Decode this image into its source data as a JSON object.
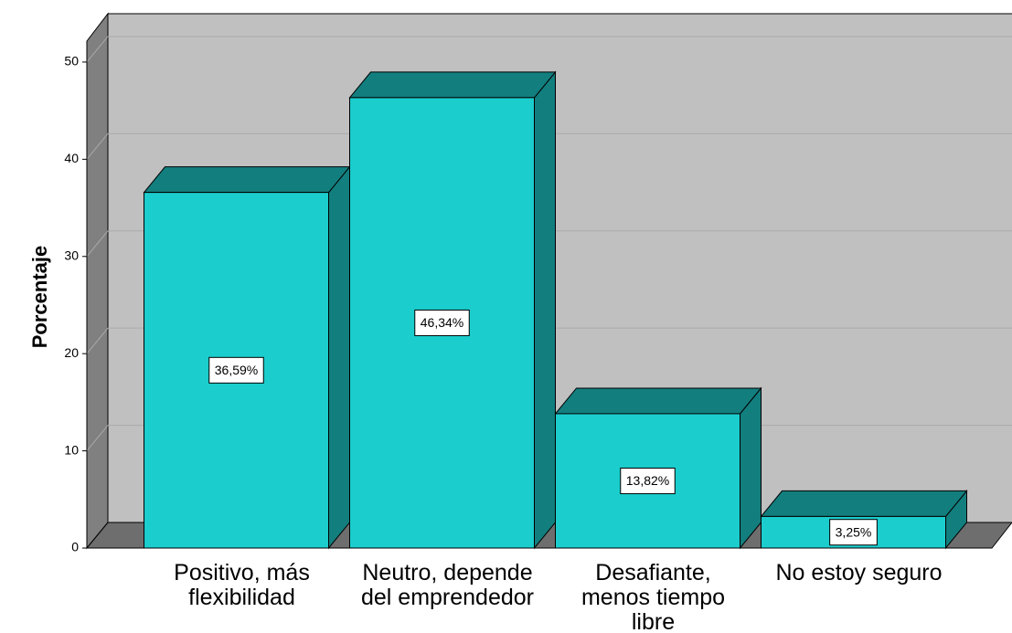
{
  "chart_data": {
    "type": "bar3d",
    "y_label": "Porcentaje",
    "categories": [
      "Positivo, más\nflexibilidad",
      "Neutro, depende\ndel emprendedor",
      "Desafiante,\nmenos tiempo\nlibre",
      "No estoy seguro"
    ],
    "values": [
      36.59,
      46.34,
      13.82,
      3.25
    ],
    "value_labels": [
      "36,59%",
      "46,34%",
      "13,82%",
      "3,25%"
    ],
    "color": "#1ccdcd",
    "ylim": [
      0,
      52.4
    ],
    "yticks": [
      0,
      10,
      20,
      30,
      40,
      50
    ],
    "grid": true
  }
}
